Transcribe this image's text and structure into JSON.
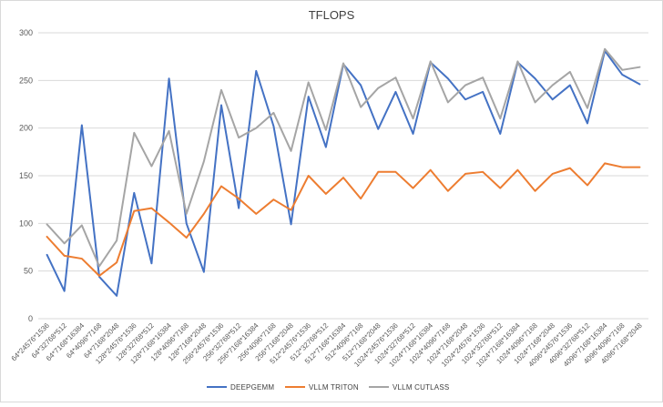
{
  "chart_data": {
    "type": "line",
    "title": "TFLOPS",
    "xlabel": "",
    "ylabel": "",
    "ylim": [
      0,
      300
    ],
    "yticks": [
      0,
      50,
      100,
      150,
      200,
      250,
      300
    ],
    "grid": "horizontal",
    "legend_position": "bottom",
    "categories": [
      "64*24576*1536",
      "64*32768*512",
      "64*7168*16384",
      "64*4096*7168",
      "64*7168*2048",
      "128*24576*1536",
      "128*32768*512",
      "128*7168*16384",
      "128*4096*7168",
      "128*7168*2048",
      "256*24576*1536",
      "256*32768*512",
      "256*7168*16384",
      "256*4096*7168",
      "256*7168*2048",
      "512*24576*1536",
      "512*32768*512",
      "512*7168*16384",
      "512*4096*7168",
      "512*7168*2048",
      "1024*24576*1536",
      "1024*32768*512",
      "1024*7168*16384",
      "1024*4096*7168",
      "1024*7168*2048",
      "1024*24576*1536",
      "1024*32768*512",
      "1024*7168*16384",
      "1024*4096*7168",
      "1024*7168*2048",
      "4096*24576*1536",
      "4096*32768*512",
      "4096*7168*16384",
      "4096*4096*7168",
      "4096*7168*2048"
    ],
    "series": [
      {
        "name": "DEEPGEMM",
        "color": "#4472C4",
        "values": [
          67,
          29,
          203,
          44,
          24,
          132,
          58,
          252,
          100,
          49,
          224,
          116,
          260,
          202,
          99,
          233,
          180,
          267,
          245,
          199,
          238,
          194,
          269,
          252,
          230,
          238,
          194,
          269,
          252,
          230,
          245,
          205,
          281,
          256,
          246
        ]
      },
      {
        "name": "VLLM TRITON",
        "color": "#ED7D31",
        "values": [
          86,
          66,
          63,
          45,
          59,
          113,
          116,
          101,
          85,
          110,
          139,
          126,
          110,
          125,
          114,
          150,
          131,
          148,
          126,
          154,
          154,
          137,
          156,
          134,
          152,
          154,
          137,
          156,
          134,
          152,
          158,
          140,
          163,
          159,
          159
        ]
      },
      {
        "name": "VLLM CUTLASS",
        "color": "#A5A5A5",
        "values": [
          99,
          79,
          98,
          55,
          82,
          195,
          160,
          197,
          110,
          165,
          240,
          190,
          200,
          216,
          176,
          248,
          198,
          268,
          222,
          242,
          253,
          210,
          270,
          227,
          245,
          253,
          210,
          270,
          227,
          245,
          259,
          221,
          283,
          261,
          264
        ]
      }
    ]
  }
}
